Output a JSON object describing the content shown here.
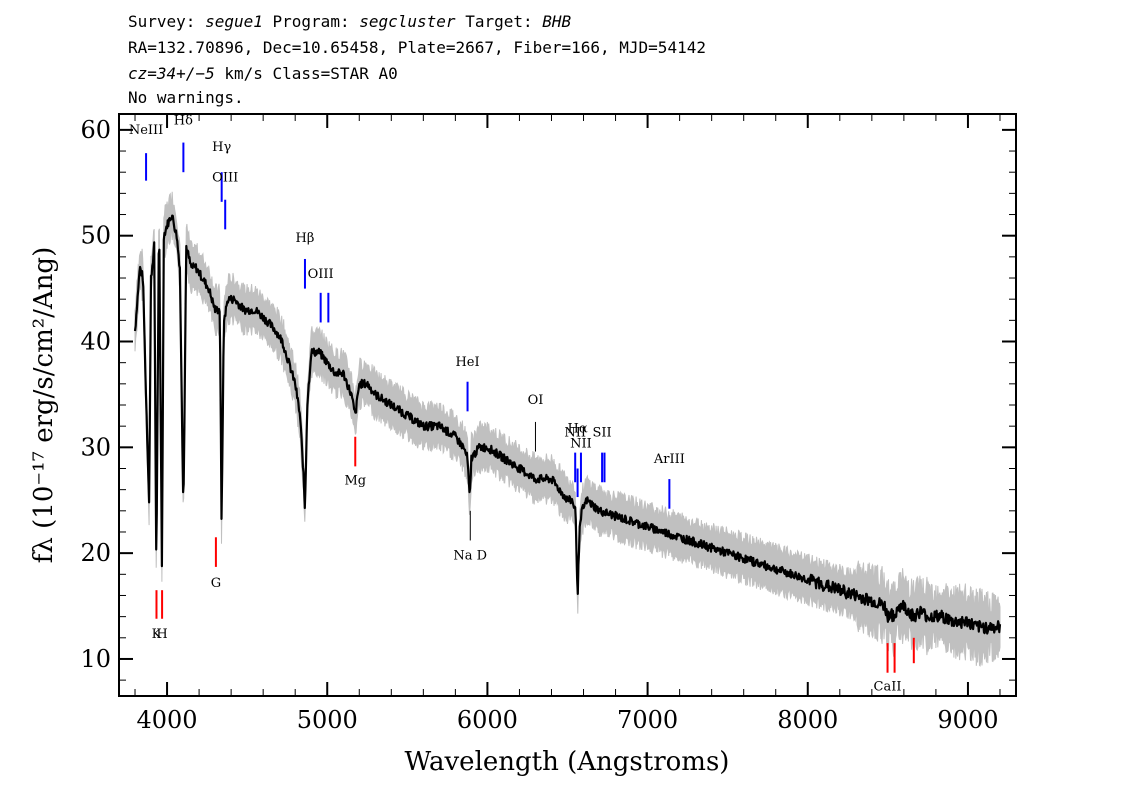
{
  "header": {
    "survey_label": "Survey:",
    "survey": "segue1",
    "program_label": "Program:",
    "program": "segcluster",
    "target_label": "Target:",
    "target": "BHB",
    "line2": "RA=132.70896, Dec=10.65458, Plate=2667, Fiber=166, MJD=54142",
    "cz": "cz=34+/−5",
    "cz_rest": " km/s Class=STAR A0",
    "warnings": "No warnings."
  },
  "chart_data": {
    "type": "line",
    "xlabel": "Wavelength (Angstroms)",
    "ylabel": "fλ (10⁻¹⁷ erg/s/cm²/Ang)",
    "xlim": [
      3700,
      9300
    ],
    "ylim": [
      6.5,
      61.5
    ],
    "x_ticks": [
      4000,
      5000,
      6000,
      7000,
      8000,
      9000
    ],
    "y_ticks": [
      10,
      20,
      30,
      40,
      50,
      60
    ],
    "grid": false,
    "colors": {
      "flux": "#000000",
      "error_band": "#c0c0c0",
      "emission": "#0000ff",
      "absorption": "#ff0000",
      "sky": "#000000"
    },
    "series": [
      {
        "name": "flux",
        "x": [
          3800,
          3830,
          3850,
          3870,
          3888,
          3900,
          3920,
          3933,
          3950,
          3968,
          3980,
          4000,
          4030,
          4060,
          4080,
          4102,
          4120,
          4150,
          4180,
          4220,
          4260,
          4300,
          4330,
          4340,
          4355,
          4380,
          4420,
          4480,
          4550,
          4620,
          4680,
          4720,
          4760,
          4800,
          4830,
          4850,
          4861,
          4875,
          4900,
          4950,
          5000,
          5050,
          5100,
          5150,
          5175,
          5200,
          5250,
          5300,
          5400,
          5500,
          5600,
          5700,
          5800,
          5850,
          5875,
          5890,
          5900,
          5950,
          6000,
          6100,
          6200,
          6300,
          6400,
          6450,
          6500,
          6530,
          6550,
          6563,
          6575,
          6590,
          6620,
          6700,
          6800,
          6900,
          7000,
          7100,
          7200,
          7300,
          7400,
          7500,
          7600,
          7700,
          7800,
          7900,
          8000,
          8100,
          8200,
          8300,
          8400,
          8480,
          8498,
          8520,
          8542,
          8560,
          8600,
          8662,
          8700,
          8750,
          8800,
          8850,
          8900,
          8950,
          9000,
          9050,
          9100,
          9150,
          9200
        ],
        "y": [
          41,
          47,
          46,
          34,
          25,
          46,
          49,
          18,
          52,
          19,
          50,
          51,
          52,
          50,
          47,
          24,
          49,
          47,
          47,
          46,
          45,
          43,
          43,
          23,
          42,
          44,
          44,
          43,
          43,
          42,
          41,
          40,
          38,
          36,
          33,
          28,
          24,
          34,
          39,
          39,
          38,
          37,
          37,
          35,
          33,
          36,
          36,
          35,
          34,
          33,
          32,
          32,
          31,
          30,
          29,
          25,
          29,
          30,
          30,
          29,
          28,
          27,
          27,
          26,
          25,
          25,
          24,
          16,
          22,
          24,
          25,
          24,
          23.5,
          23,
          22.5,
          22,
          21.5,
          21,
          20.5,
          20,
          19.5,
          19,
          18.5,
          18,
          17.5,
          17,
          16.5,
          16,
          15.5,
          15,
          14,
          14.5,
          13.5,
          15,
          15,
          14,
          14.5,
          14,
          14,
          14,
          13.5,
          13.5,
          13.5,
          13,
          13,
          13,
          13
        ]
      }
    ],
    "lines": [
      {
        "label": "NeIII",
        "wave": 3869,
        "kind": "emission",
        "y0": 57.8,
        "y1": 55.2,
        "ly": 59.6
      },
      {
        "label": "Hδ",
        "wave": 4102,
        "kind": "emission",
        "y0": 58.8,
        "y1": 56.0,
        "ly": 60.5
      },
      {
        "label": "Hγ",
        "wave": 4341,
        "kind": "emission",
        "y0": 56.0,
        "y1": 53.2,
        "ly": 58.0
      },
      {
        "label": "OIII",
        "wave": 4363,
        "kind": "emission",
        "y0": 53.4,
        "y1": 50.6,
        "ly": 55.1
      },
      {
        "label": "Hβ",
        "wave": 4861,
        "kind": "emission",
        "y0": 47.8,
        "y1": 45.0,
        "ly": 49.4
      },
      {
        "label": "OIII",
        "wave": 4959,
        "kind": "emission",
        "y0": 44.6,
        "y1": 41.8,
        "ly": 46.0
      },
      {
        "label": "",
        "wave": 5007,
        "kind": "emission",
        "y0": 44.6,
        "y1": 41.8,
        "ly": 46.0
      },
      {
        "label": "HeI",
        "wave": 5876,
        "kind": "emission",
        "y0": 36.2,
        "y1": 33.4,
        "ly": 37.7
      },
      {
        "label": "OI",
        "wave": 6300,
        "kind": "sky",
        "y0": 32.4,
        "y1": 29.6,
        "ly": 34.1
      },
      {
        "label": "NII",
        "wave": 6548,
        "kind": "emission",
        "y0": 29.5,
        "y1": 26.7,
        "ly": 31.0
      },
      {
        "label": "Hα",
        "wave": 6563,
        "kind": "emission",
        "y0": 28.0,
        "y1": 25.3,
        "ly": 31.4
      },
      {
        "label": "NII",
        "wave": 6584,
        "kind": "emission",
        "y0": 29.5,
        "y1": 26.7,
        "ly": 30.0
      },
      {
        "label": "SII",
        "wave": 6716,
        "kind": "emission",
        "y0": 29.5,
        "y1": 26.7,
        "ly": 31.0
      },
      {
        "label": "",
        "wave": 6731,
        "kind": "emission",
        "y0": 29.5,
        "y1": 26.7,
        "ly": 31.0
      },
      {
        "label": "ArIII",
        "wave": 7136,
        "kind": "emission",
        "y0": 27.0,
        "y1": 24.2,
        "ly": 28.5
      },
      {
        "label": "K",
        "wave": 3934,
        "kind": "absorption",
        "y0": 16.5,
        "y1": 13.8,
        "ly": 12.0
      },
      {
        "label": "H",
        "wave": 3969,
        "kind": "absorption",
        "y0": 16.5,
        "y1": 13.8,
        "ly": 12.0
      },
      {
        "label": "G",
        "wave": 4305,
        "kind": "absorption",
        "y0": 21.5,
        "y1": 18.7,
        "ly": 16.8
      },
      {
        "label": "Mg",
        "wave": 5175,
        "kind": "absorption",
        "y0": 31.0,
        "y1": 28.2,
        "ly": 26.5
      },
      {
        "label": "Na D",
        "wave": 5893,
        "kind": "sky",
        "y0": 24.0,
        "y1": 21.2,
        "ly": 19.4
      },
      {
        "label": "CaII",
        "wave": 8498,
        "kind": "absorption",
        "y0": 11.5,
        "y1": 8.7,
        "ly": 7.0
      },
      {
        "label": "",
        "wave": 8542,
        "kind": "absorption",
        "y0": 11.5,
        "y1": 8.7,
        "ly": 7.0
      },
      {
        "label": "",
        "wave": 8662,
        "kind": "absorption",
        "y0": 12.0,
        "y1": 9.6,
        "ly": 7.0
      }
    ]
  }
}
